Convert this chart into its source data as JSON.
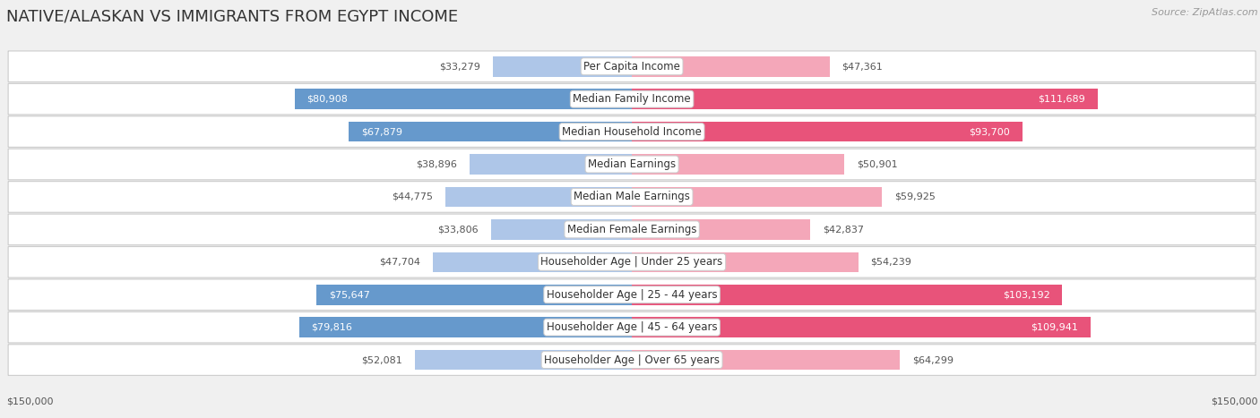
{
  "title": "NATIVE/ALASKAN VS IMMIGRANTS FROM EGYPT INCOME",
  "source": "Source: ZipAtlas.com",
  "categories": [
    "Per Capita Income",
    "Median Family Income",
    "Median Household Income",
    "Median Earnings",
    "Median Male Earnings",
    "Median Female Earnings",
    "Householder Age | Under 25 years",
    "Householder Age | 25 - 44 years",
    "Householder Age | 45 - 64 years",
    "Householder Age | Over 65 years"
  ],
  "native_values": [
    33279,
    80908,
    67879,
    38896,
    44775,
    33806,
    47704,
    75647,
    79816,
    52081
  ],
  "immigrant_values": [
    47361,
    111689,
    93700,
    50901,
    59925,
    42837,
    54239,
    103192,
    109941,
    64299
  ],
  "native_color_light": "#aec6e8",
  "native_color_dark": "#6699cc",
  "immigrant_color_light": "#f4a7b9",
  "immigrant_color_dark": "#e8537a",
  "native_dark_threshold": 65000,
  "immigrant_dark_threshold": 90000,
  "max_value": 150000,
  "background_color": "#f0f0f0",
  "row_bg_color": "#ffffff",
  "native_label": "Native/Alaskan",
  "immigrant_label": "Immigrants from Egypt",
  "xlabel_left": "$150,000",
  "xlabel_right": "$150,000",
  "title_fontsize": 13,
  "label_fontsize": 8.5,
  "value_fontsize": 8.0
}
